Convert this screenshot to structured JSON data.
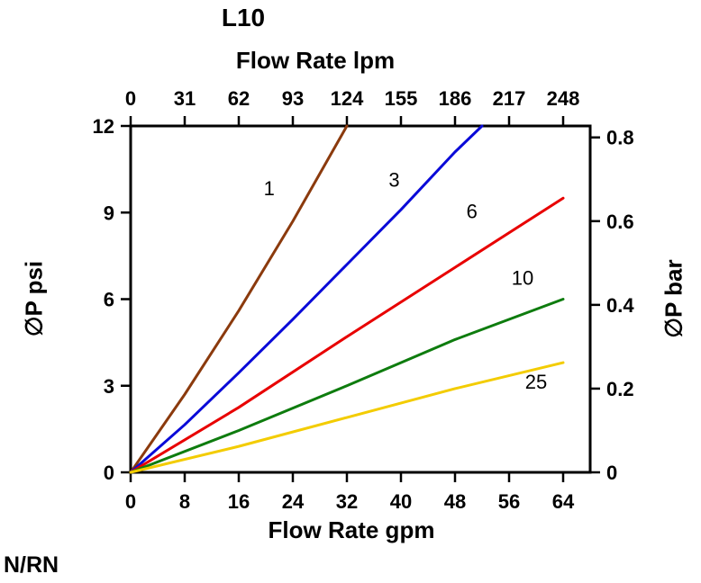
{
  "title": "L10",
  "footnote": "N/RN",
  "chart_data": {
    "type": "line",
    "title": "L10",
    "grid": false,
    "legend": "inline-labels-on-lines",
    "top_axis": {
      "label": "Flow Rate lpm",
      "ticks": [
        0,
        31,
        62,
        93,
        124,
        155,
        186,
        217,
        248
      ]
    },
    "bottom_axis": {
      "label": "Flow Rate gpm",
      "ticks": [
        0,
        8,
        16,
        24,
        32,
        40,
        48,
        56,
        64
      ],
      "range": [
        0,
        68
      ]
    },
    "left_axis": {
      "label": "∅P psi",
      "ticks": [
        0,
        3,
        6,
        9,
        12
      ],
      "range": [
        0,
        12
      ]
    },
    "right_axis": {
      "label": "∅P bar",
      "ticks": [
        0,
        0.2,
        0.4,
        0.6,
        0.8
      ],
      "psi_per_bar": 14.5038
    },
    "series": [
      {
        "name": "1",
        "color": "#8B3A0D",
        "points": [
          [
            0,
            0
          ],
          [
            8,
            2.7
          ],
          [
            16,
            5.6
          ],
          [
            24,
            8.7
          ],
          [
            32,
            12
          ]
        ],
        "label_pos": [
          20.5,
          9.6
        ]
      },
      {
        "name": "3",
        "color": "#0A0AD8",
        "points": [
          [
            0,
            0
          ],
          [
            8,
            1.65
          ],
          [
            16,
            3.45
          ],
          [
            24,
            5.3
          ],
          [
            32,
            7.2
          ],
          [
            40,
            9.1
          ],
          [
            48,
            11.1
          ],
          [
            52,
            12
          ]
        ],
        "label_pos": [
          39,
          9.9
        ]
      },
      {
        "name": "6",
        "color": "#E80000",
        "points": [
          [
            0,
            0
          ],
          [
            16,
            2.25
          ],
          [
            32,
            4.7
          ],
          [
            48,
            7.1
          ],
          [
            64,
            9.5
          ]
        ],
        "label_pos": [
          50.5,
          8.8
        ]
      },
      {
        "name": "10",
        "color": "#0E7C0E",
        "points": [
          [
            0,
            0
          ],
          [
            16,
            1.45
          ],
          [
            32,
            3.0
          ],
          [
            48,
            4.6
          ],
          [
            64,
            6.0
          ]
        ],
        "label_pos": [
          58,
          6.5
        ]
      },
      {
        "name": "25",
        "color": "#F3CC00",
        "points": [
          [
            0,
            0
          ],
          [
            16,
            0.9
          ],
          [
            32,
            1.9
          ],
          [
            48,
            2.9
          ],
          [
            64,
            3.8
          ]
        ],
        "label_pos": [
          60,
          2.9
        ]
      }
    ]
  }
}
